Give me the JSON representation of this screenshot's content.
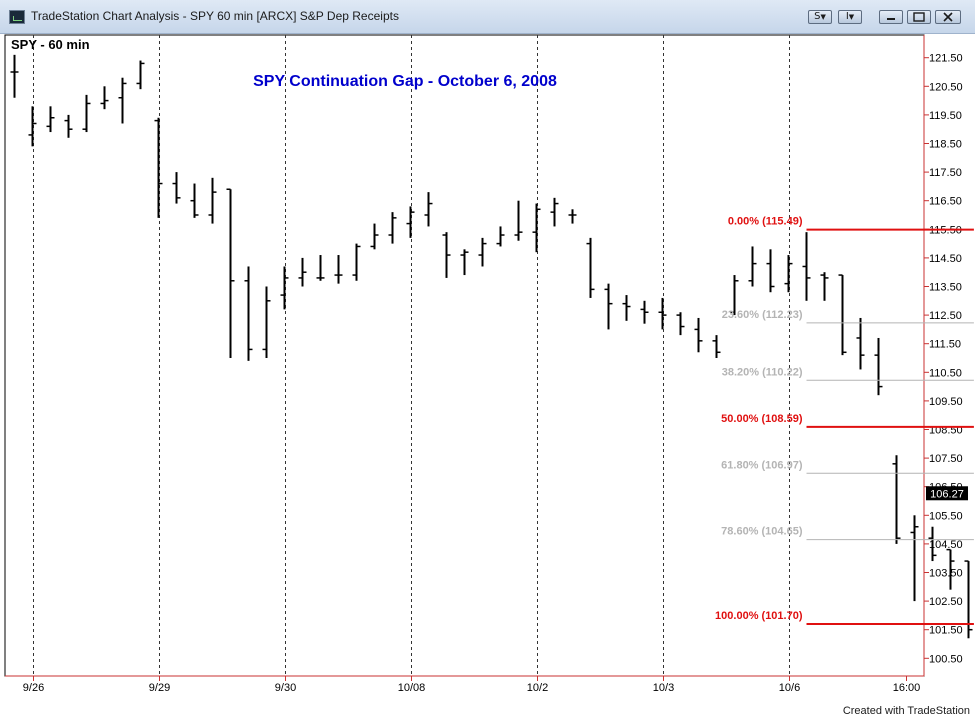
{
  "window": {
    "title": "TradeStation Chart Analysis - SPY 60 min [ARCX] S&P Dep Receipts",
    "footer": "Created with TradeStation",
    "buttons": [
      "S",
      "I"
    ],
    "icons": [
      "app-icon",
      "minimize-icon",
      "restore-icon",
      "close-icon",
      "dropdown-arrow-icon"
    ]
  },
  "chart_data": {
    "type": "ohlc",
    "symbol_label": "SPY - 60 min",
    "title": "SPY Continuation Gap - October 6, 2008",
    "title_color": "#0000cc",
    "last_price": "106.27",
    "grid": true,
    "ylim": [
      99.9,
      122.3
    ],
    "y_ticks": [
      "100.50",
      "101.50",
      "102.50",
      "103.50",
      "104.50",
      "105.50",
      "106.50",
      "107.50",
      "108.50",
      "109.50",
      "110.50",
      "111.50",
      "112.50",
      "113.50",
      "114.50",
      "115.50",
      "116.50",
      "117.50",
      "118.50",
      "119.50",
      "120.50",
      "121.50"
    ],
    "x_ticks": [
      {
        "label": "9/26",
        "bar": 1
      },
      {
        "label": "9/29",
        "bar": 8
      },
      {
        "label": "9/30",
        "bar": 15
      },
      {
        "label": "10/08",
        "bar": 22
      },
      {
        "label": "10/2",
        "bar": 29
      },
      {
        "label": "10/3",
        "bar": 36
      },
      {
        "label": "10/6",
        "bar": 43
      },
      {
        "label": "16:00",
        "bar": 49.5
      }
    ],
    "session_breaks": [
      1,
      8,
      15,
      22,
      29,
      36,
      43
    ],
    "bars": [
      {
        "o": 121.0,
        "h": 121.6,
        "l": 120.1,
        "c": 121.0
      },
      {
        "o": 118.8,
        "h": 119.8,
        "l": 118.4,
        "c": 119.2
      },
      {
        "o": 119.1,
        "h": 119.8,
        "l": 118.9,
        "c": 119.4
      },
      {
        "o": 119.3,
        "h": 119.5,
        "l": 118.7,
        "c": 119.0
      },
      {
        "o": 119.0,
        "h": 120.2,
        "l": 118.9,
        "c": 119.9
      },
      {
        "o": 119.9,
        "h": 120.5,
        "l": 119.7,
        "c": 120.0
      },
      {
        "o": 120.1,
        "h": 120.8,
        "l": 119.2,
        "c": 120.6
      },
      {
        "o": 120.6,
        "h": 121.4,
        "l": 120.4,
        "c": 121.3
      },
      {
        "o": 119.3,
        "h": 119.4,
        "l": 115.9,
        "c": 117.1
      },
      {
        "o": 117.1,
        "h": 117.5,
        "l": 116.4,
        "c": 116.6
      },
      {
        "o": 116.5,
        "h": 117.1,
        "l": 115.9,
        "c": 116.0
      },
      {
        "o": 116.0,
        "h": 117.3,
        "l": 115.7,
        "c": 116.8
      },
      {
        "o": 116.9,
        "h": 116.9,
        "l": 111.0,
        "c": 113.7
      },
      {
        "o": 113.7,
        "h": 114.2,
        "l": 110.9,
        "c": 111.3
      },
      {
        "o": 111.3,
        "h": 113.5,
        "l": 111.0,
        "c": 113.0
      },
      {
        "o": 113.2,
        "h": 114.2,
        "l": 112.7,
        "c": 113.8
      },
      {
        "o": 113.8,
        "h": 114.5,
        "l": 113.5,
        "c": 114.0
      },
      {
        "o": 113.8,
        "h": 114.6,
        "l": 113.7,
        "c": 113.8
      },
      {
        "o": 113.9,
        "h": 114.6,
        "l": 113.6,
        "c": 113.9
      },
      {
        "o": 113.9,
        "h": 115.0,
        "l": 113.7,
        "c": 114.9
      },
      {
        "o": 114.9,
        "h": 115.7,
        "l": 114.8,
        "c": 115.3
      },
      {
        "o": 115.3,
        "h": 116.1,
        "l": 115.0,
        "c": 115.9
      },
      {
        "o": 115.7,
        "h": 116.3,
        "l": 115.2,
        "c": 116.1
      },
      {
        "o": 116.0,
        "h": 116.8,
        "l": 115.6,
        "c": 116.4
      },
      {
        "o": 115.3,
        "h": 115.4,
        "l": 113.8,
        "c": 114.6
      },
      {
        "o": 114.6,
        "h": 114.8,
        "l": 113.9,
        "c": 114.7
      },
      {
        "o": 114.6,
        "h": 115.2,
        "l": 114.2,
        "c": 115.0
      },
      {
        "o": 115.0,
        "h": 115.6,
        "l": 114.9,
        "c": 115.3
      },
      {
        "o": 115.3,
        "h": 116.5,
        "l": 115.1,
        "c": 115.4
      },
      {
        "o": 115.4,
        "h": 116.4,
        "l": 114.7,
        "c": 116.2
      },
      {
        "o": 116.1,
        "h": 116.6,
        "l": 115.6,
        "c": 116.4
      },
      {
        "o": 116.0,
        "h": 116.2,
        "l": 115.7,
        "c": 116.0
      },
      {
        "o": 115.0,
        "h": 115.2,
        "l": 113.1,
        "c": 113.4
      },
      {
        "o": 113.4,
        "h": 113.6,
        "l": 112.0,
        "c": 112.9
      },
      {
        "o": 112.9,
        "h": 113.2,
        "l": 112.3,
        "c": 112.8
      },
      {
        "o": 112.7,
        "h": 113.0,
        "l": 112.2,
        "c": 112.6
      },
      {
        "o": 112.6,
        "h": 113.1,
        "l": 112.0,
        "c": 112.5
      },
      {
        "o": 112.5,
        "h": 112.6,
        "l": 111.8,
        "c": 112.1
      },
      {
        "o": 112.0,
        "h": 112.4,
        "l": 111.2,
        "c": 111.6
      },
      {
        "o": 111.6,
        "h": 111.8,
        "l": 111.0,
        "c": 111.2
      },
      {
        "o": 112.6,
        "h": 113.9,
        "l": 112.5,
        "c": 113.7
      },
      {
        "o": 113.7,
        "h": 114.9,
        "l": 113.5,
        "c": 114.3
      },
      {
        "o": 114.3,
        "h": 114.8,
        "l": 113.3,
        "c": 113.5
      },
      {
        "o": 113.6,
        "h": 114.6,
        "l": 113.3,
        "c": 114.3
      },
      {
        "o": 114.2,
        "h": 115.4,
        "l": 113.0,
        "c": 113.8
      },
      {
        "o": 113.9,
        "h": 114.0,
        "l": 113.0,
        "c": 113.8
      },
      {
        "o": 113.9,
        "h": 113.9,
        "l": 111.1,
        "c": 111.2
      },
      {
        "o": 111.7,
        "h": 112.4,
        "l": 110.6,
        "c": 111.1
      },
      {
        "o": 111.1,
        "h": 111.7,
        "l": 109.7,
        "c": 110.0
      },
      {
        "o": 107.3,
        "h": 107.6,
        "l": 104.5,
        "c": 104.7
      },
      {
        "o": 104.9,
        "h": 105.5,
        "l": 102.5,
        "c": 105.1
      },
      {
        "o": 104.7,
        "h": 105.1,
        "l": 103.9,
        "c": 104.1
      },
      {
        "o": 104.3,
        "h": 104.3,
        "l": 102.9,
        "c": 103.9
      },
      {
        "o": 103.9,
        "h": 103.9,
        "l": 101.2,
        "c": 101.5
      },
      {
        "o": 101.7,
        "h": 105.0,
        "l": 100.6,
        "c": 104.8
      },
      {
        "o": 104.8,
        "h": 106.3,
        "l": 103.5,
        "c": 106.2
      }
    ],
    "fibonacci": [
      {
        "label": "0.00% (115.49)",
        "value": 115.49,
        "bold": true,
        "color": "#e01010"
      },
      {
        "label": "23.60% (112.23)",
        "value": 112.23,
        "bold": false,
        "color": "#b4b4b4"
      },
      {
        "label": "38.20% (110.22)",
        "value": 110.22,
        "bold": false,
        "color": "#b4b4b4"
      },
      {
        "label": "50.00% (108.59)",
        "value": 108.59,
        "bold": true,
        "color": "#e01010"
      },
      {
        "label": "61.80% (106.97)",
        "value": 106.97,
        "bold": false,
        "color": "#b4b4b4"
      },
      {
        "label": "78.60% (104.65)",
        "value": 104.65,
        "bold": false,
        "color": "#b4b4b4"
      },
      {
        "label": "100.00% (101.70)",
        "value": 101.7,
        "bold": true,
        "color": "#e01010"
      }
    ],
    "fib_start_bar": 44,
    "fib_end_bar": 53.3
  }
}
